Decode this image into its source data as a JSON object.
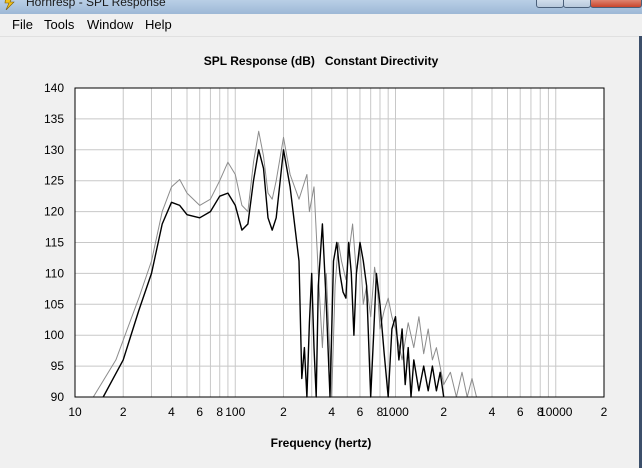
{
  "window": {
    "title": "Hornresp - SPL Response"
  },
  "menu": [
    "File",
    "Tools",
    "Window",
    "Help"
  ],
  "chart_data": {
    "type": "line",
    "title": "SPL Response (dB)",
    "subtitle": "Constant Directivity",
    "xlabel": "Frequency (hertz)",
    "ylabel": "",
    "xscale": "log",
    "xlim": [
      10,
      20000
    ],
    "ylim": [
      90,
      140
    ],
    "yticks": [
      90,
      95,
      100,
      105,
      110,
      115,
      120,
      125,
      130,
      135,
      140
    ],
    "xtick_labels": [
      {
        "v": 10,
        "label": "10"
      },
      {
        "v": 20,
        "label": "2"
      },
      {
        "v": 40,
        "label": "4"
      },
      {
        "v": 60,
        "label": "6"
      },
      {
        "v": 80,
        "label": "8"
      },
      {
        "v": 100,
        "label": "100"
      },
      {
        "v": 200,
        "label": "2"
      },
      {
        "v": 400,
        "label": "4"
      },
      {
        "v": 600,
        "label": "6"
      },
      {
        "v": 800,
        "label": "8"
      },
      {
        "v": 1000,
        "label": "1000"
      },
      {
        "v": 2000,
        "label": "2"
      },
      {
        "v": 4000,
        "label": "4"
      },
      {
        "v": 6000,
        "label": "6"
      },
      {
        "v": 8000,
        "label": "8"
      },
      {
        "v": 10000,
        "label": "10000"
      },
      {
        "v": 20000,
        "label": "2"
      }
    ],
    "grid": true,
    "series": [
      {
        "color": "#000000",
        "points": [
          [
            15,
            90
          ],
          [
            20,
            96
          ],
          [
            25,
            104
          ],
          [
            30,
            110
          ],
          [
            35,
            118
          ],
          [
            40,
            121.5
          ],
          [
            45,
            121
          ],
          [
            50,
            119.5
          ],
          [
            60,
            119
          ],
          [
            70,
            120
          ],
          [
            80,
            122.5
          ],
          [
            90,
            123
          ],
          [
            100,
            121
          ],
          [
            110,
            117
          ],
          [
            120,
            118
          ],
          [
            130,
            125
          ],
          [
            140,
            130
          ],
          [
            150,
            127
          ],
          [
            160,
            119
          ],
          [
            170,
            117
          ],
          [
            180,
            119
          ],
          [
            200,
            130
          ],
          [
            220,
            124
          ],
          [
            250,
            112
          ],
          [
            260,
            93
          ],
          [
            270,
            98
          ],
          [
            280,
            90
          ],
          [
            290,
            102
          ],
          [
            300,
            110
          ],
          [
            310,
            98
          ],
          [
            320,
            90
          ],
          [
            330,
            108
          ],
          [
            350,
            118
          ],
          [
            370,
            105
          ],
          [
            390,
            90
          ],
          [
            410,
            112
          ],
          [
            430,
            115
          ],
          [
            450,
            110
          ],
          [
            470,
            107
          ],
          [
            490,
            106
          ],
          [
            510,
            115
          ],
          [
            530,
            110
          ],
          [
            550,
            100
          ],
          [
            570,
            110
          ],
          [
            600,
            115
          ],
          [
            630,
            112
          ],
          [
            660,
            108
          ],
          [
            700,
            90
          ],
          [
            730,
            100
          ],
          [
            760,
            110
          ],
          [
            800,
            105
          ],
          [
            850,
            97
          ],
          [
            900,
            90
          ],
          [
            950,
            101
          ],
          [
            1000,
            103
          ],
          [
            1050,
            96
          ],
          [
            1100,
            101
          ],
          [
            1150,
            92
          ],
          [
            1200,
            98
          ],
          [
            1250,
            90
          ],
          [
            1300,
            96
          ],
          [
            1400,
            91
          ],
          [
            1500,
            95
          ],
          [
            1600,
            91
          ],
          [
            1700,
            95
          ],
          [
            1800,
            91
          ],
          [
            1900,
            94
          ],
          [
            2000,
            90
          ]
        ]
      },
      {
        "color": "#8c8c8c",
        "points": [
          [
            13,
            90
          ],
          [
            18,
            96
          ],
          [
            25,
            106
          ],
          [
            30,
            112
          ],
          [
            35,
            120
          ],
          [
            40,
            124
          ],
          [
            45,
            125.2
          ],
          [
            50,
            123
          ],
          [
            60,
            121
          ],
          [
            70,
            122
          ],
          [
            80,
            125
          ],
          [
            90,
            128
          ],
          [
            100,
            126
          ],
          [
            110,
            121
          ],
          [
            120,
            120
          ],
          [
            130,
            128
          ],
          [
            140,
            133
          ],
          [
            150,
            129
          ],
          [
            160,
            123
          ],
          [
            170,
            122
          ],
          [
            180,
            125
          ],
          [
            200,
            132
          ],
          [
            220,
            126
          ],
          [
            250,
            122
          ],
          [
            280,
            126
          ],
          [
            290,
            120
          ],
          [
            310,
            124
          ],
          [
            330,
            110
          ],
          [
            350,
            98
          ],
          [
            370,
            110
          ],
          [
            400,
            90
          ],
          [
            420,
            108
          ],
          [
            440,
            115
          ],
          [
            460,
            112
          ],
          [
            490,
            109
          ],
          [
            510,
            113
          ],
          [
            540,
            118
          ],
          [
            570,
            110
          ],
          [
            600,
            114
          ],
          [
            630,
            105
          ],
          [
            660,
            108
          ],
          [
            700,
            103
          ],
          [
            740,
            111
          ],
          [
            770,
            108
          ],
          [
            800,
            101
          ],
          [
            850,
            104
          ],
          [
            900,
            106
          ],
          [
            950,
            103
          ],
          [
            1000,
            101
          ],
          [
            1100,
            96
          ],
          [
            1200,
            102
          ],
          [
            1300,
            98
          ],
          [
            1400,
            103
          ],
          [
            1500,
            97
          ],
          [
            1600,
            101
          ],
          [
            1700,
            96
          ],
          [
            1800,
            98
          ],
          [
            2000,
            92
          ],
          [
            2200,
            94
          ],
          [
            2400,
            90
          ],
          [
            2600,
            94
          ],
          [
            2800,
            90
          ],
          [
            3000,
            93
          ],
          [
            3200,
            90
          ]
        ]
      }
    ]
  }
}
